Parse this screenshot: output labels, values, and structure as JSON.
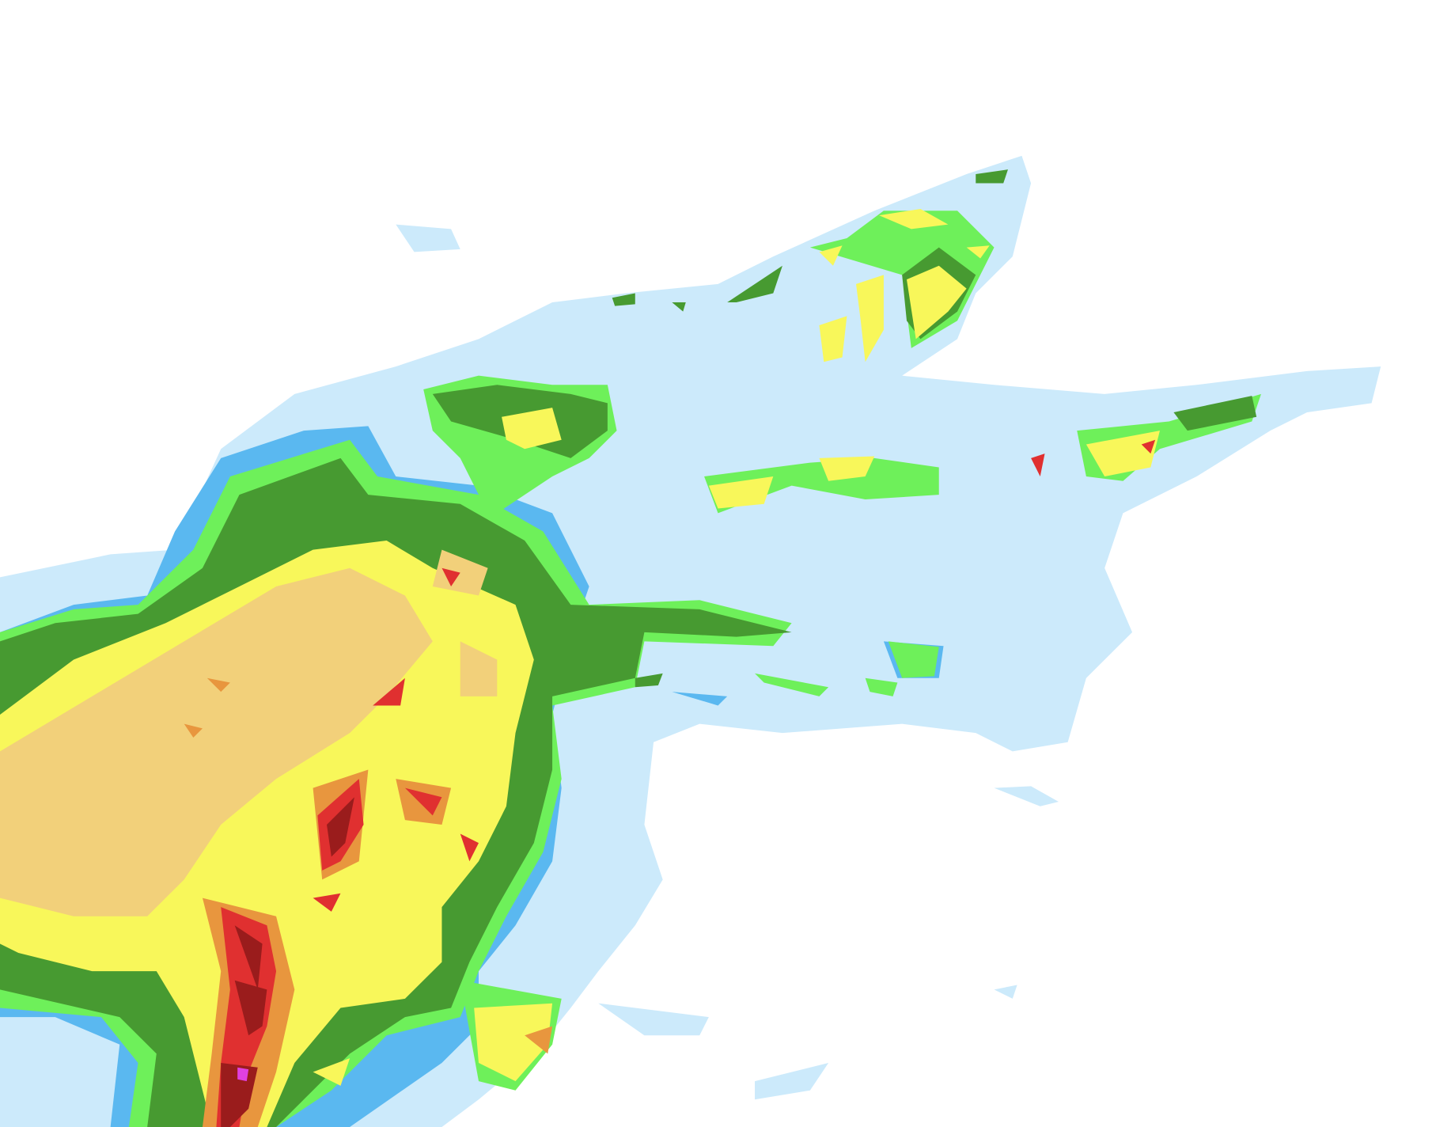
{
  "map": {
    "type": "precipitation-radar-overlay",
    "background": "#ffffff",
    "intensity_colors": {
      "very_light": "#cceafb",
      "light": "#5ab8f0",
      "light_moderate": "#6ef05a",
      "moderate": "#479a31",
      "moderate_heavy": "#f8f75a",
      "heavy": "#f2d07a",
      "very_heavy": "#e8963e",
      "intense": "#e03030",
      "extreme": "#9a1c1c",
      "hail": "#e040e0"
    }
  }
}
